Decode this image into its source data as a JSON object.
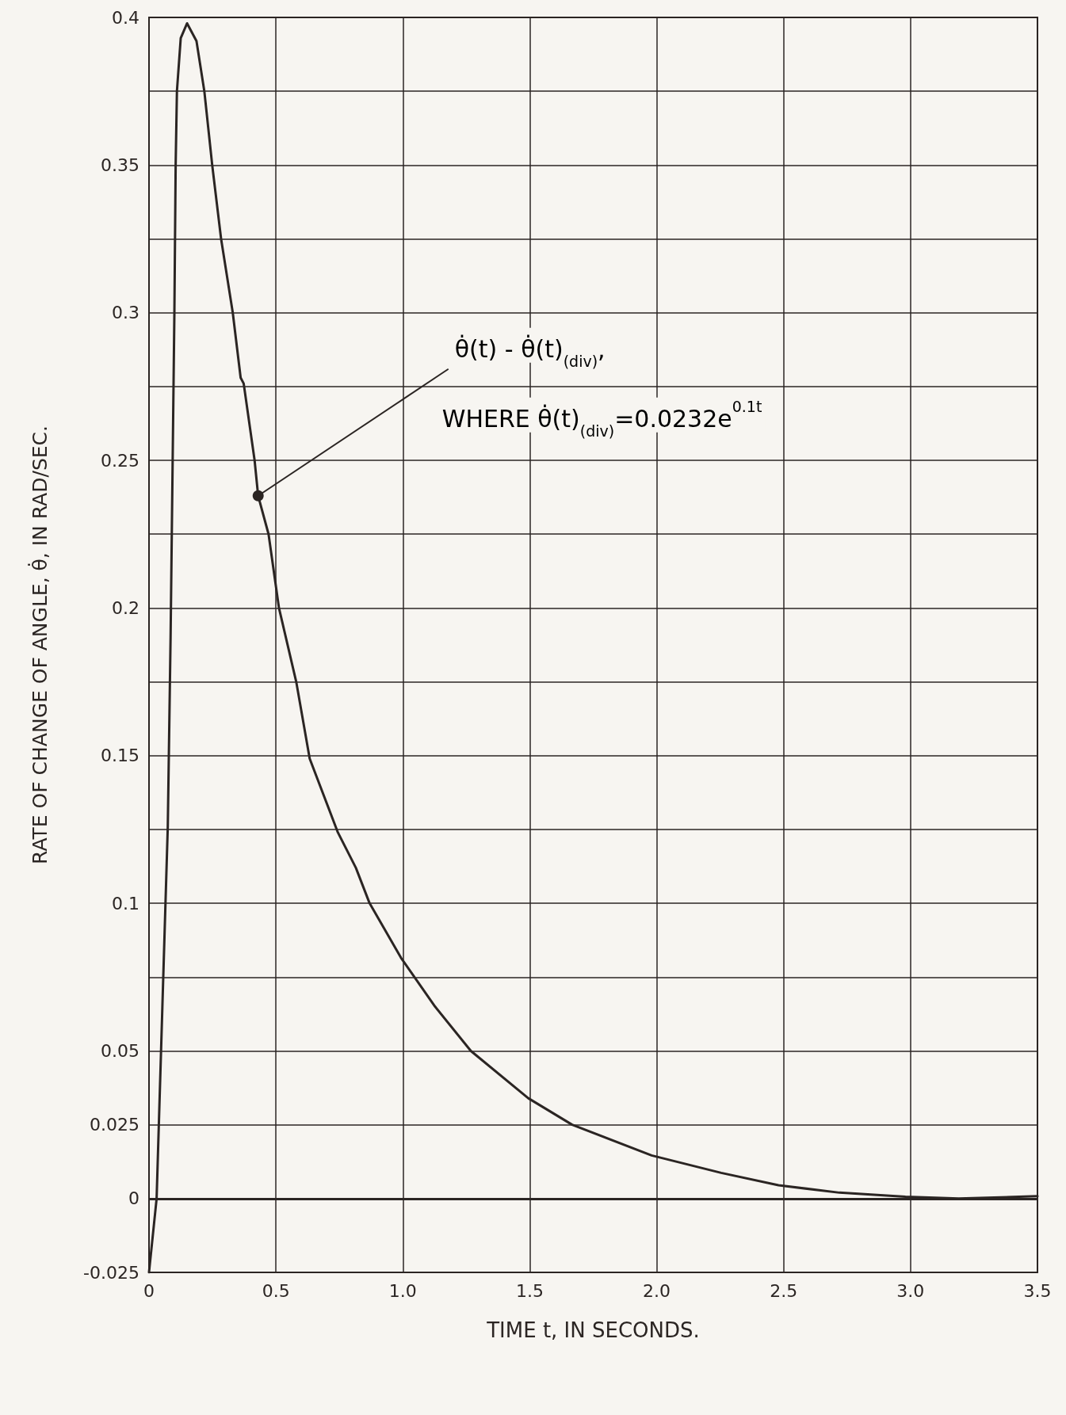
{
  "chart_data": {
    "type": "line",
    "xlabel": "TIME t, IN SECONDS.",
    "ylabel": "RATE OF CHANGE OF ANGLE, θ̇, IN RAD/SEC.",
    "annotations": [
      {
        "text": "θ̇(t) - θ̇(t)$_{(div)}$,",
        "x": 0.43,
        "y": 0.238
      },
      "WHERE θ̇(t)$_{(div)}$=0.0232e$^{0.1t}$"
    ],
    "series": [
      {
        "color": "#2b2523",
        "x": [
          0,
          0.03,
          0.074,
          0.085,
          0.1,
          0.105,
          0.11,
          0.125,
          0.15,
          0.187,
          0.218,
          0.249,
          0.284,
          0.33,
          0.361,
          0.373,
          0.416,
          0.43,
          0.471,
          0.512,
          0.58,
          0.633,
          0.744,
          0.815,
          0.869,
          0.993,
          1.127,
          1.268,
          1.494,
          1.667,
          1.98,
          2.254,
          2.48,
          2.72,
          2.98,
          3.19,
          3.5
        ],
        "values": [
          -0.025,
          0,
          0.126,
          0.19,
          0.3,
          0.35,
          0.375,
          0.393,
          0.398,
          0.392,
          0.375,
          0.35,
          0.325,
          0.3,
          0.278,
          0.276,
          0.25,
          0.238,
          0.225,
          0.2,
          0.175,
          0.149,
          0.124,
          0.112,
          0.1,
          0.0815,
          0.065,
          0.05,
          0.034,
          0.025,
          0.0146,
          0.0087,
          0.0045,
          0.002,
          0.0006,
          0,
          0.0008
        ]
      }
    ],
    "xlim": [
      0,
      3.5
    ],
    "xticks": [
      0,
      0.5,
      {
        "value": 1,
        "label": "1.0"
      },
      1.5,
      {
        "value": 2,
        "label": "2.0"
      },
      2.5,
      {
        "value": 3,
        "label": "3.0"
      },
      3.5
    ],
    "ylim": [
      -0.025,
      0.4
    ],
    "yticks": [
      -0.025,
      0,
      0.025,
      {
        "value": 0.05,
        "label": "0.05"
      },
      {
        "value": 0.075,
        "label": null
      },
      0.1,
      {
        "value": 0.125,
        "label": null
      },
      0.15,
      {
        "value": 0.175,
        "label": null
      },
      0.2,
      {
        "value": 0.225,
        "label": null
      },
      0.25,
      {
        "value": 0.275,
        "label": null
      },
      0.3,
      {
        "value": 0.325,
        "label": null
      },
      0.35,
      {
        "value": 0.375,
        "label": null
      },
      0.4
    ],
    "ref_lines": [
      {
        "axis": "y",
        "value": 0,
        "color": "#2b2523"
      }
    ],
    "grid": true,
    "marker": "none",
    "line_style": "solid"
  }
}
